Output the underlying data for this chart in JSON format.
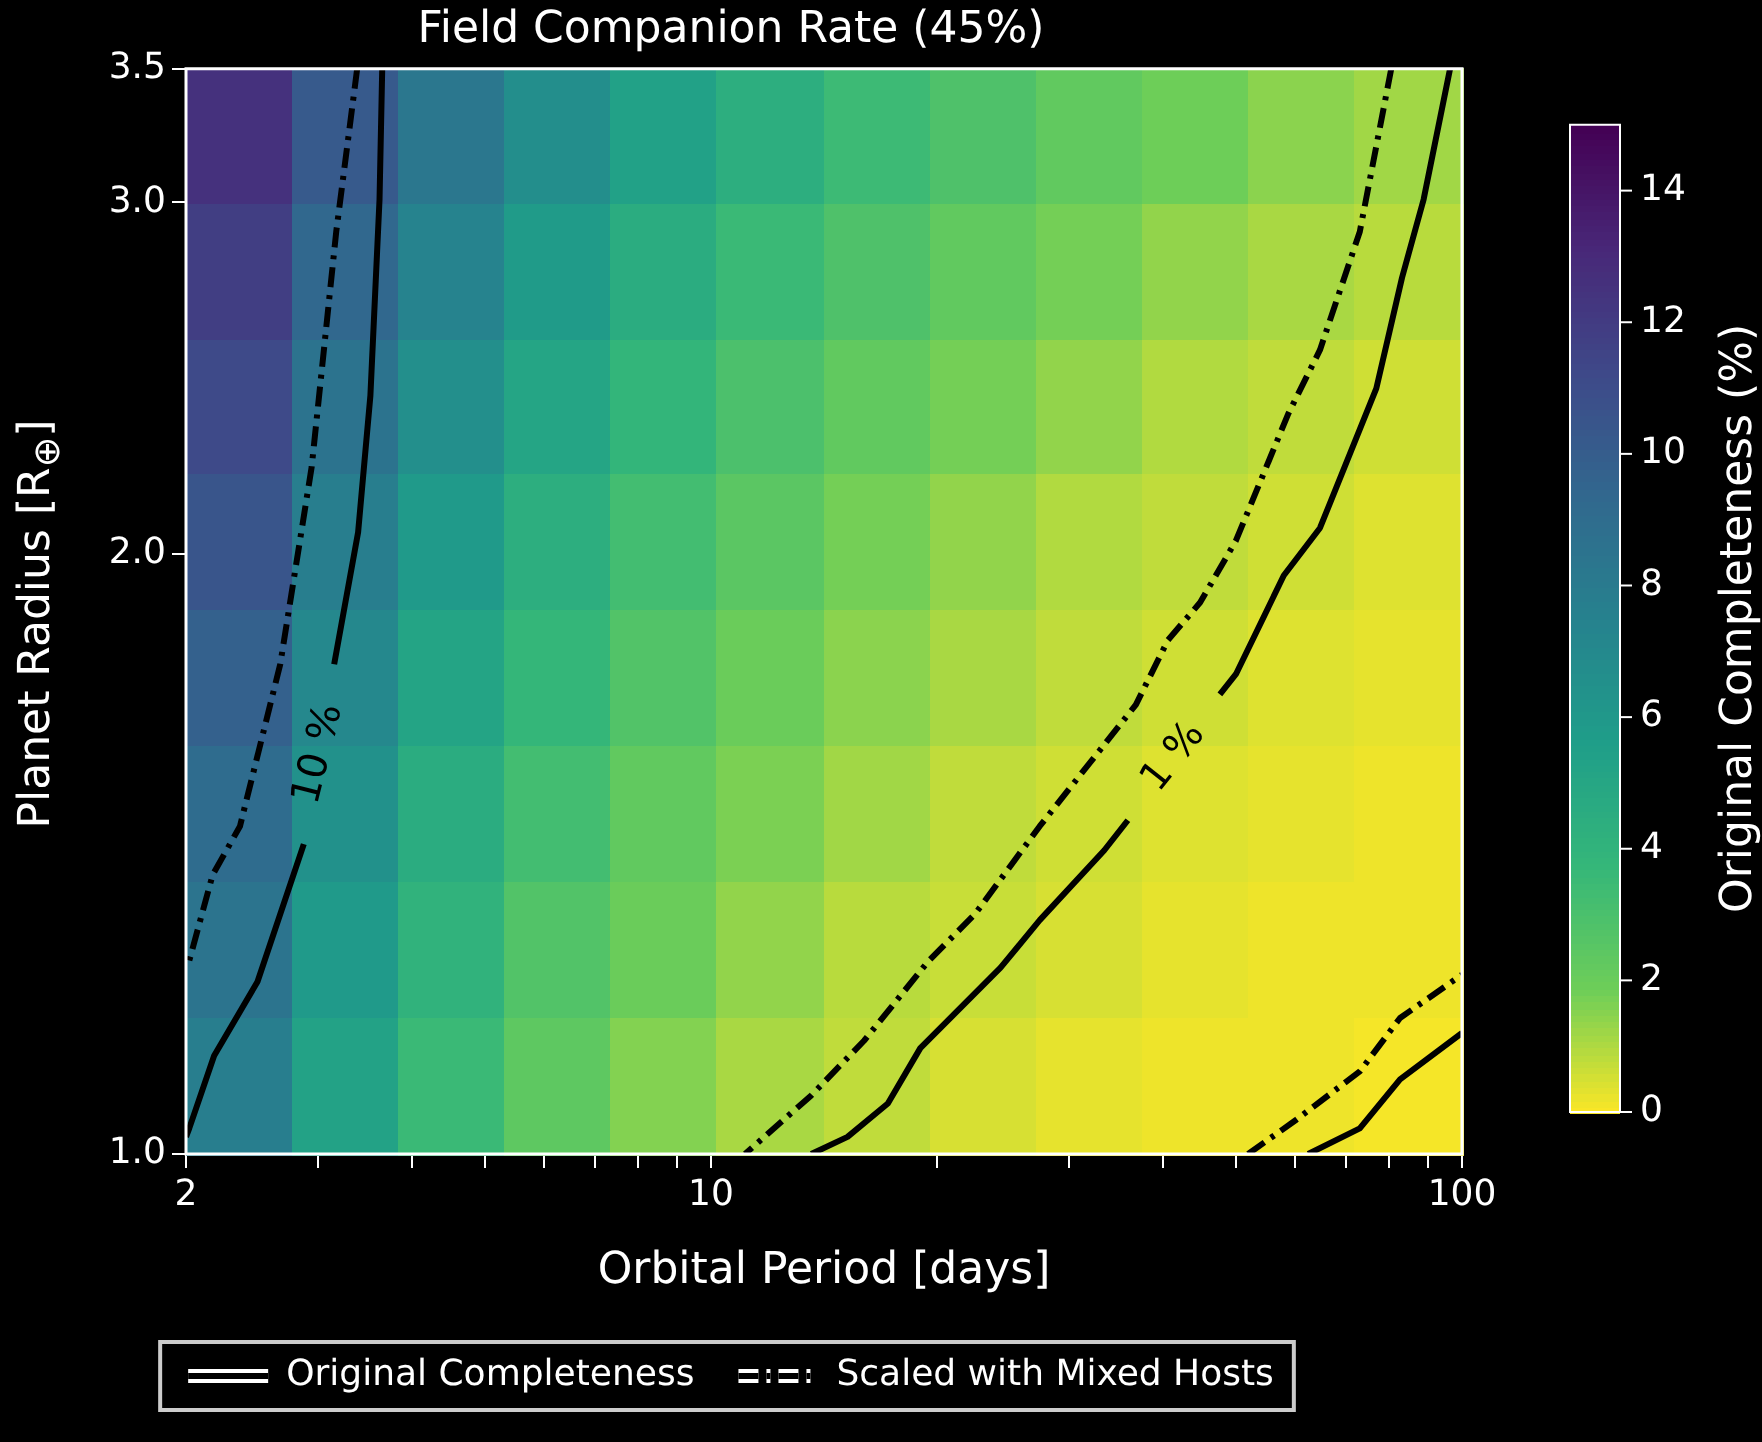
{
  "chart_data": {
    "type": "heatmap",
    "title": "Field Companion Rate (45%)",
    "xlabel": "Orbital Period [days]",
    "ylabel": "Planet Radius [R$_{⊕}$]",
    "clabel": "Original Completeness (%)",
    "log": "xy",
    "xlim": [
      2,
      100
    ],
    "ylim": [
      1,
      3.5
    ],
    "xticks": [
      {
        "value": 2,
        "label": "2"
      },
      {
        "value": 3,
        "label": null
      },
      {
        "value": 4,
        "label": null
      },
      {
        "value": 5,
        "label": null
      },
      {
        "value": 6,
        "label": null
      },
      {
        "value": 7,
        "label": null
      },
      {
        "value": 8,
        "label": null
      },
      {
        "value": 9,
        "label": null
      },
      10,
      {
        "value": 20,
        "label": null
      },
      {
        "value": 30,
        "label": null
      },
      {
        "value": 40,
        "label": null
      },
      {
        "value": 50,
        "label": null
      },
      {
        "value": 60,
        "label": null
      },
      {
        "value": 70,
        "label": null
      },
      {
        "value": 80,
        "label": null
      },
      {
        "value": 90,
        "label": null
      },
      100
    ],
    "yticks": [
      {
        "value": 1,
        "label": "1.0"
      },
      {
        "value": 2,
        "label": "2.0"
      },
      {
        "value": 3,
        "label": "3.0"
      },
      3.5
    ],
    "clim": [
      0,
      15
    ],
    "cticks": [
      0,
      2,
      4,
      6,
      8,
      10,
      12,
      14
    ],
    "cells": [
      [
        12.6,
        10.2,
        8.3,
        6.7,
        5.4,
        4.4,
        3.5,
        2.9,
        2.3,
        1.9,
        1.5,
        1.2
      ],
      [
        11.9,
        9.4,
        7.4,
        5.8,
        4.6,
        3.6,
        2.9,
        2.3,
        1.8,
        1.4,
        1.1,
        0.9
      ],
      [
        11.2,
        8.6,
        6.6,
        5.1,
        3.9,
        3.0,
        2.3,
        1.8,
        1.4,
        1.0,
        0.8,
        0.6
      ],
      [
        10.5,
        7.8,
        5.9,
        4.4,
        3.3,
        2.5,
        1.8,
        1.4,
        1.0,
        0.8,
        0.6,
        0.4
      ],
      [
        9.8,
        7.1,
        5.2,
        3.8,
        2.8,
        2.0,
        1.5,
        1.1,
        0.8,
        0.6,
        0.4,
        0.3
      ],
      [
        9.1,
        6.5,
        4.6,
        3.3,
        2.3,
        1.7,
        1.2,
        0.8,
        0.6,
        0.4,
        0.3,
        0.2
      ],
      [
        8.5,
        5.9,
        4.1,
        2.8,
        2.0,
        1.4,
        0.9,
        0.7,
        0.5,
        0.3,
        0.2,
        0.2
      ],
      [
        7.8,
        5.3,
        3.6,
        2.4,
        1.6,
        1.1,
        0.8,
        0.5,
        0.3,
        0.2,
        0.2,
        0.1
      ]
    ],
    "series": [
      {
        "name": "Original Completeness",
        "type": "line",
        "color": "#000000",
        "line_style": "solid",
        "x": [
          3.65,
          3.62,
          3.52,
          3.39,
          3.15,
          3.0,
          2.87,
          2.49,
          2.18,
          2.02,
          2.0
        ],
        "values": [
          3.5,
          3.01,
          2.4,
          2.05,
          1.76,
          null,
          1.43,
          1.22,
          1.12,
          1.03,
          1.02
        ]
      },
      {
        "name": "Scaled with Mixed Hosts",
        "type": "line",
        "color": "#000000",
        "line_style": "dashed",
        "x": [
          3.38,
          3.17,
          2.94,
          2.67,
          2.36,
          2.17,
          2.02
        ],
        "values": [
          3.5,
          2.9,
          2.21,
          1.76,
          1.46,
          1.38,
          1.25
        ]
      },
      {
        "type": "line",
        "color": "#000000",
        "line_style": "solid",
        "x": [
          96.4,
          88.9,
          83.2,
          76.9,
          64.7,
          57.9,
          50.0,
          47.6,
          42.0,
          35.9,
          33.4,
          27.4,
          24.3,
          19.0,
          17.2,
          15.2,
          13.6
        ],
        "values": [
          3.5,
          3.01,
          2.75,
          2.42,
          2.06,
          1.95,
          1.74,
          1.7,
          null,
          1.47,
          1.42,
          1.31,
          1.24,
          1.13,
          1.06,
          1.02,
          1.0
        ]
      },
      {
        "type": "line",
        "color": "#000000",
        "line_style": "dashed",
        "x": [
          80.5,
          73.1,
          64.7,
          58.7,
          50.0,
          44.8,
          40.6,
          36.8,
          27.4,
          22.5,
          19.5,
          16.0,
          13.6,
          11.1
        ],
        "values": [
          3.5,
          2.9,
          2.53,
          2.35,
          2.03,
          1.89,
          1.81,
          1.68,
          1.46,
          1.32,
          1.25,
          1.14,
          1.07,
          1.0
        ]
      },
      {
        "type": "line",
        "color": "#000000",
        "line_style": "solid",
        "x": [
          62.4,
          73.1,
          82.7,
          100
        ],
        "values": [
          1.0,
          1.03,
          1.09,
          1.15
        ]
      },
      {
        "type": "line",
        "color": "#000000",
        "line_style": "dashed",
        "x": [
          51.9,
          60.1,
          73.1,
          82.7,
          100
        ],
        "values": [
          1.0,
          1.04,
          1.1,
          1.17,
          1.23
        ]
      }
    ],
    "annotations": [
      "10 %",
      "1 %"
    ],
    "legend": "bottom",
    "marker": "none"
  }
}
